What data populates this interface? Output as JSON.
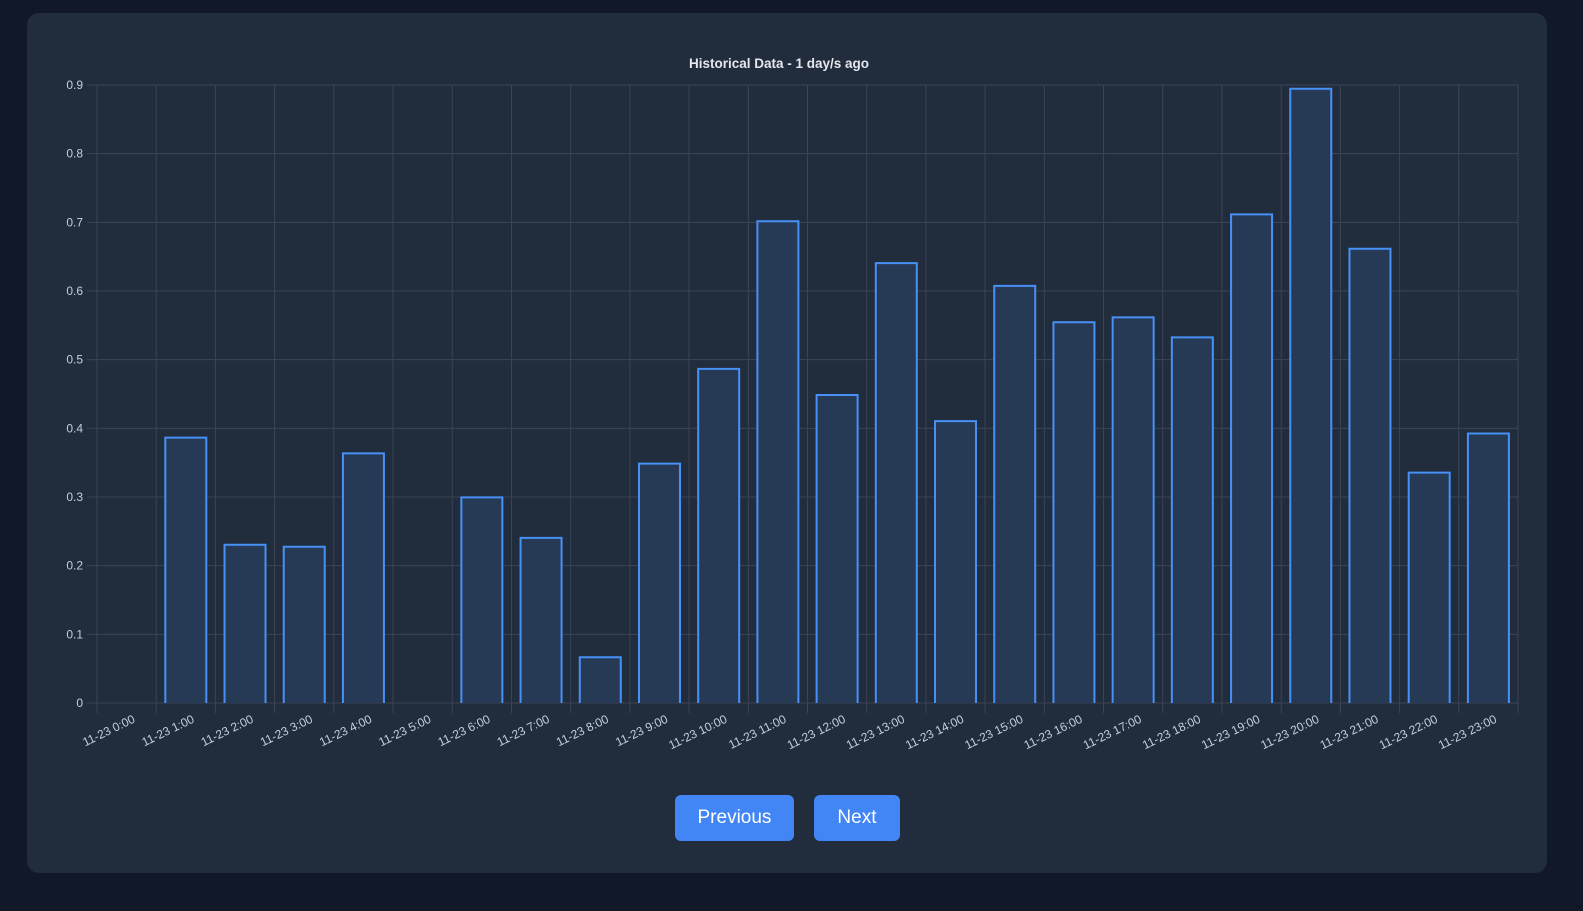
{
  "chart_data": {
    "type": "bar",
    "title": "Historical Data - 1 day/s ago",
    "categories": [
      "11-23 0:00",
      "11-23 1:00",
      "11-23 2:00",
      "11-23 3:00",
      "11-23 4:00",
      "11-23 5:00",
      "11-23 6:00",
      "11-23 7:00",
      "11-23 8:00",
      "11-23 9:00",
      "11-23 10:00",
      "11-23 11:00",
      "11-23 12:00",
      "11-23 13:00",
      "11-23 14:00",
      "11-23 15:00",
      "11-23 16:00",
      "11-23 17:00",
      "11-23 18:00",
      "11-23 19:00",
      "11-23 20:00",
      "11-23 21:00",
      "11-23 22:00",
      "11-23 23:00"
    ],
    "values": [
      0,
      0.388,
      0.232,
      0.229,
      0.365,
      0,
      0.301,
      0.242,
      0.068,
      0.35,
      0.488,
      0.703,
      0.45,
      0.642,
      0.412,
      0.609,
      0.556,
      0.563,
      0.534,
      0.713,
      0.896,
      0.663,
      0.337,
      0.394
    ],
    "yticks": [
      0,
      0.1,
      0.2,
      0.3,
      0.4,
      0.5,
      0.6,
      0.7,
      0.8,
      0.9
    ],
    "ylim": [
      0,
      0.9
    ],
    "xlabel": "",
    "ylabel": "",
    "grid": true,
    "legend": false
  },
  "controls": {
    "previous_label": "Previous",
    "next_label": "Next"
  },
  "colors": {
    "page_background": "#111827",
    "card_background": "#212c3c",
    "grid": "#3b4556",
    "bar_border": "#4791f6",
    "bar_fill": "#263a55",
    "tick_text": "#c7ced9",
    "title_text": "#e4e8ee",
    "button_background": "#4285f4",
    "button_text": "#ffffff"
  }
}
